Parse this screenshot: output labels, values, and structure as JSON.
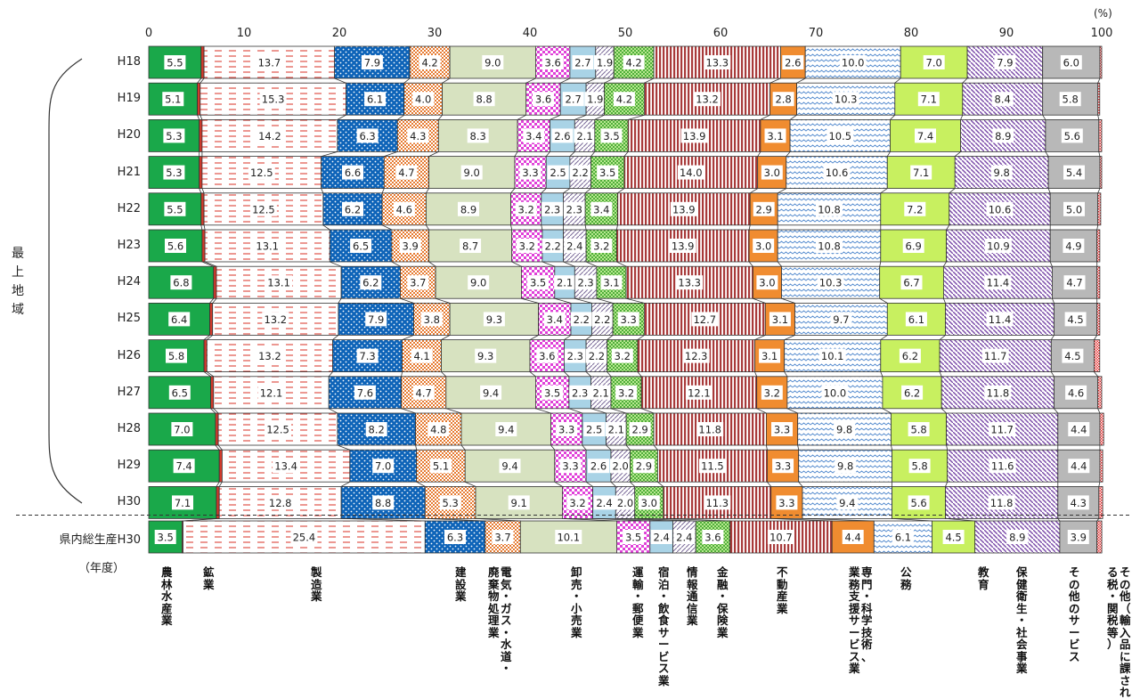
{
  "unit_label": "(%)",
  "year_caption": "（年度）",
  "region_label": "最上地域",
  "chart_data": {
    "type": "bar",
    "orientation": "horizontal-stacked-100",
    "x_ticks": [
      "0",
      "10",
      "20",
      "30",
      "40",
      "50",
      "60",
      "70",
      "80",
      "90",
      "100"
    ],
    "xlim": [
      0,
      100
    ],
    "categories": [
      "H18",
      "H19",
      "H20",
      "H21",
      "H22",
      "H23",
      "H24",
      "H25",
      "H26",
      "H27",
      "H28",
      "H29",
      "H30",
      "県内総生産H30"
    ],
    "series": [
      {
        "name": "農林水産業",
        "color": "#1aa84a",
        "values": [
          5.5,
          5.1,
          5.3,
          5.3,
          5.5,
          5.6,
          6.8,
          6.4,
          5.8,
          6.5,
          7.0,
          7.4,
          7.1,
          3.5
        ]
      },
      {
        "name": "鉱業",
        "color": "#d33a2c",
        "values": [
          0.3,
          0.3,
          0.3,
          0.3,
          0.3,
          0.3,
          0.3,
          0.3,
          0.3,
          0.3,
          0.3,
          0.3,
          0.3,
          0.1
        ]
      },
      {
        "name": "製造業",
        "color": "#e85a4a",
        "values": [
          13.7,
          15.3,
          14.2,
          12.5,
          12.5,
          13.1,
          13.1,
          13.2,
          13.2,
          12.1,
          12.5,
          13.4,
          12.8,
          25.4
        ]
      },
      {
        "name": "建設業",
        "color": "#0d63b8",
        "values": [
          7.9,
          6.1,
          6.3,
          6.6,
          6.2,
          6.5,
          6.2,
          7.9,
          7.3,
          7.6,
          8.2,
          7.0,
          8.8,
          6.3
        ]
      },
      {
        "name": "電気・ガス・水道・廃棄物処理業",
        "color": "#e67a30",
        "values": [
          4.2,
          4.0,
          4.3,
          4.7,
          4.6,
          3.9,
          3.7,
          3.8,
          4.1,
          4.7,
          4.8,
          5.1,
          5.3,
          3.7
        ]
      },
      {
        "name": "卸売・小売業",
        "color": "#d7e2c0",
        "values": [
          9.0,
          8.8,
          8.3,
          9.0,
          8.9,
          8.7,
          9.0,
          9.3,
          9.3,
          9.4,
          9.4,
          9.4,
          9.1,
          10.1
        ]
      },
      {
        "name": "運輸・郵便業",
        "color": "#e040d8",
        "values": [
          3.6,
          3.6,
          3.4,
          3.3,
          3.2,
          3.2,
          3.5,
          3.4,
          3.6,
          3.5,
          3.3,
          3.3,
          3.2,
          3.5
        ]
      },
      {
        "name": "宿泊・飲食サービス業",
        "color": "#a9d3e6",
        "values": [
          2.7,
          2.7,
          2.6,
          2.5,
          2.3,
          2.2,
          2.1,
          2.2,
          2.3,
          2.3,
          2.5,
          2.6,
          2.4,
          2.4
        ]
      },
      {
        "name": "情報通信業",
        "color": "#8a7aa8",
        "values": [
          1.9,
          1.9,
          2.1,
          2.2,
          2.3,
          2.4,
          2.3,
          2.2,
          2.2,
          2.1,
          2.1,
          2.0,
          2.0,
          2.4
        ]
      },
      {
        "name": "金融・保険業",
        "color": "#6fc24a",
        "values": [
          4.2,
          4.2,
          3.5,
          3.5,
          3.4,
          3.2,
          3.1,
          3.3,
          3.2,
          3.2,
          2.9,
          2.9,
          3.0,
          3.6
        ]
      },
      {
        "name": "不動産業",
        "color": "#a83a3a",
        "values": [
          13.3,
          13.2,
          13.9,
          14.0,
          13.9,
          13.9,
          13.3,
          12.7,
          12.3,
          12.1,
          11.8,
          11.5,
          11.3,
          10.7
        ]
      },
      {
        "name": "専門・科学技術、業務支援サービス業",
        "color": "#f08c30",
        "values": [
          2.6,
          2.8,
          3.1,
          3.0,
          2.9,
          3.0,
          3.0,
          3.1,
          3.1,
          3.2,
          3.3,
          3.3,
          3.3,
          4.4
        ]
      },
      {
        "name": "公務",
        "color": "#5a8fd0",
        "values": [
          10.0,
          10.3,
          10.5,
          10.6,
          10.8,
          10.8,
          10.3,
          9.7,
          10.1,
          10.0,
          9.8,
          9.8,
          9.4,
          6.1
        ]
      },
      {
        "name": "教育",
        "color": "#c8f060",
        "values": [
          7.0,
          7.1,
          7.4,
          7.1,
          7.2,
          6.9,
          6.7,
          6.1,
          6.2,
          6.2,
          5.8,
          5.8,
          5.6,
          4.5
        ]
      },
      {
        "name": "保健衛生・社会事業",
        "color": "#8b5cb8",
        "values": [
          7.9,
          8.4,
          8.9,
          9.8,
          10.6,
          10.9,
          11.4,
          11.4,
          11.7,
          11.8,
          11.7,
          11.6,
          11.8,
          8.9
        ]
      },
      {
        "name": "その他のサービス",
        "color": "#b8b8b8",
        "values": [
          6.0,
          5.8,
          5.6,
          5.4,
          5.0,
          4.9,
          4.7,
          4.5,
          4.5,
          4.6,
          4.4,
          4.4,
          4.3,
          3.9
        ]
      },
      {
        "name": "その他（輸入品に課される税・関税等）",
        "color": "#e53030",
        "values": [
          0.2,
          0.2,
          0.3,
          0.2,
          0.3,
          0.3,
          0.3,
          0.3,
          0.6,
          0.4,
          0.4,
          0.3,
          0.4,
          0.5
        ]
      }
    ]
  }
}
